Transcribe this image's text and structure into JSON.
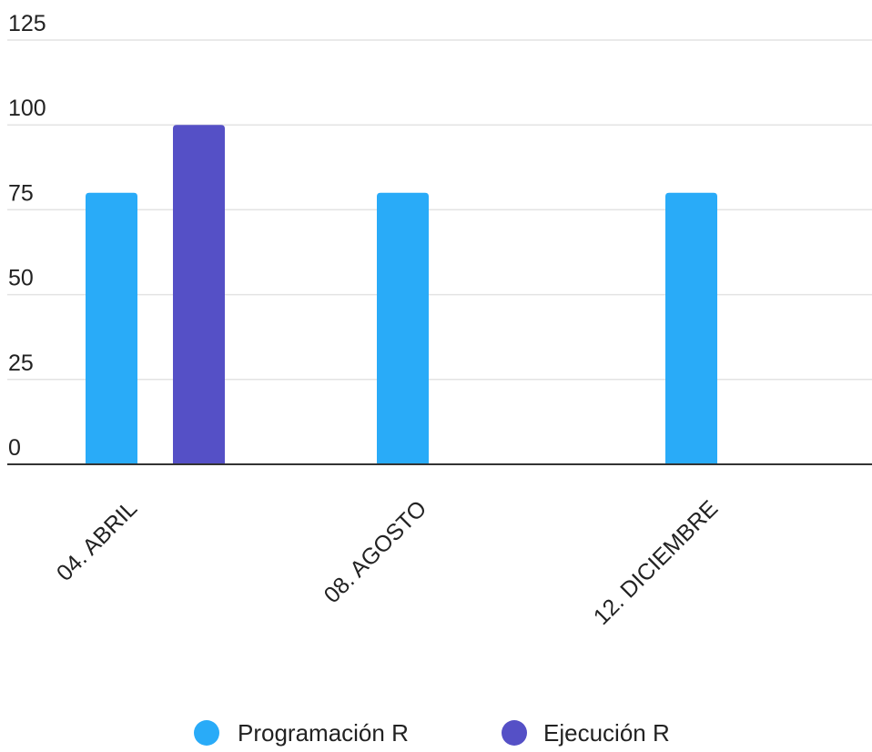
{
  "chart_data": {
    "type": "bar",
    "categories": [
      "04. ABRIL",
      "08. AGOSTO",
      "12. DICIEMBRE"
    ],
    "series": [
      {
        "name": "Programación R",
        "values": [
          80,
          80,
          80
        ],
        "color": "#29abf8"
      },
      {
        "name": "Ejecución R",
        "values": [
          100,
          0,
          0
        ],
        "color": "#5550c6"
      }
    ],
    "ylim": [
      0,
      125
    ],
    "yticks": [
      0,
      25,
      50,
      75,
      100,
      125
    ],
    "grid": true,
    "legend_position": "bottom",
    "xlabel": "",
    "ylabel": ""
  }
}
